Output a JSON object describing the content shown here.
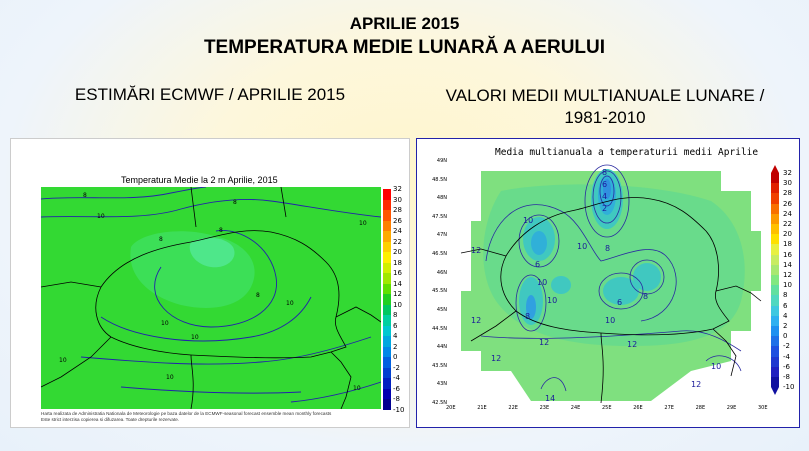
{
  "header": {
    "title": "APRILIE 2015",
    "subtitle": "TEMPERATURA MEDIE LUNARĂ A AERULUI"
  },
  "left": {
    "heading": "ESTIMĂRI ECMWF / APRILIE 2015",
    "map_title": "Temperatura Medie la 2 m Aprilie, 2015",
    "footnote_1": "Harta realizata de Administratia Nationala de Meteorologie pe baza datelor de la ECMWF-seasonal forecast ensemble mean monthly forecasts",
    "footnote_2": "Este strict interzisa copierea si difuzarea. Toate drepturile rezervate.",
    "contour_labels": [
      "8",
      "10",
      "8",
      "8",
      "8",
      "10",
      "8",
      "10",
      "10",
      "10",
      "10",
      "10",
      "10"
    ],
    "legend_values": [
      "32",
      "30",
      "28",
      "26",
      "24",
      "22",
      "20",
      "18",
      "16",
      "14",
      "12",
      "10",
      "8",
      "6",
      "4",
      "2",
      "0",
      "-2",
      "-4",
      "-6",
      "-8",
      "-10"
    ],
    "legend_colors": [
      "#ff0000",
      "#ff2a00",
      "#ff5500",
      "#ff8000",
      "#ffaa00",
      "#ffd000",
      "#fff000",
      "#d0f000",
      "#a0e800",
      "#60e000",
      "#20d020",
      "#00c860",
      "#00d0a0",
      "#00c8d0",
      "#00a8e0",
      "#0088e8",
      "#0060e0",
      "#0040d0",
      "#0020c0",
      "#0000b0",
      "#000090"
    ]
  },
  "right": {
    "heading_line1": "VALORI MEDII MULTIANUALE LUNARE /",
    "heading_line2": "1981-2010",
    "map_title": "Media multianuala a temperaturii medii Aprilie",
    "lat_labels": [
      "49N",
      "48.5N",
      "48N",
      "47.5N",
      "47N",
      "46.5N",
      "46N",
      "45.5N",
      "45N",
      "44.5N",
      "44N",
      "43.5N",
      "43N",
      "42.5N"
    ],
    "lon_labels": [
      "20E",
      "21E",
      "22E",
      "23E",
      "24E",
      "25E",
      "26E",
      "27E",
      "28E",
      "29E",
      "30E"
    ],
    "contour_labels": [
      "12",
      "10",
      "8",
      "6",
      "4",
      "2",
      "10",
      "6",
      "8",
      "10",
      "12",
      "12",
      "10",
      "8",
      "6",
      "8",
      "10",
      "12",
      "12",
      "12",
      "10",
      "14"
    ],
    "legend_values": [
      "32",
      "30",
      "28",
      "26",
      "24",
      "22",
      "20",
      "18",
      "16",
      "14",
      "12",
      "10",
      "8",
      "6",
      "4",
      "2",
      "0",
      "-2",
      "-4",
      "-6",
      "-8",
      "-10"
    ],
    "legend_colors": [
      "#c00000",
      "#e02000",
      "#f04000",
      "#f87000",
      "#fc9a00",
      "#ffc000",
      "#ffe000",
      "#e8f040",
      "#c8ec60",
      "#a8e870",
      "#80e880",
      "#60e0a0",
      "#50d8c0",
      "#40c8e0",
      "#30b0f0",
      "#2090f0",
      "#2070e8",
      "#2050e0",
      "#2038d0",
      "#2020c0",
      "#1010a0"
    ]
  }
}
